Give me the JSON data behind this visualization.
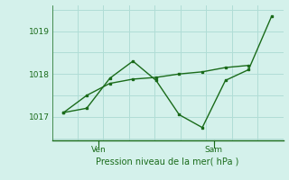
{
  "line1_x": [
    0,
    1,
    2,
    3,
    4,
    5,
    6,
    7,
    8
  ],
  "line1_y": [
    1017.1,
    1017.5,
    1017.78,
    1017.88,
    1017.92,
    1018.0,
    1018.05,
    1018.15,
    1018.2
  ],
  "line2_x": [
    0,
    1,
    2,
    3,
    4,
    5,
    6,
    7,
    8,
    9
  ],
  "line2_y": [
    1017.1,
    1017.2,
    1017.9,
    1018.3,
    1017.85,
    1017.05,
    1016.75,
    1017.85,
    1018.1,
    1019.35
  ],
  "ven_x": 1.5,
  "sam_x": 6.5,
  "yticks": [
    1017,
    1018,
    1019
  ],
  "ylim": [
    1016.45,
    1019.6
  ],
  "xlim": [
    -0.5,
    9.5
  ],
  "line_color": "#1a6b1a",
  "bg_color": "#d4f1eb",
  "grid_color": "#b0ddd6",
  "xlabel": "Pression niveau de la mer( hPa )",
  "grid_nx": 10,
  "grid_ny": 4
}
